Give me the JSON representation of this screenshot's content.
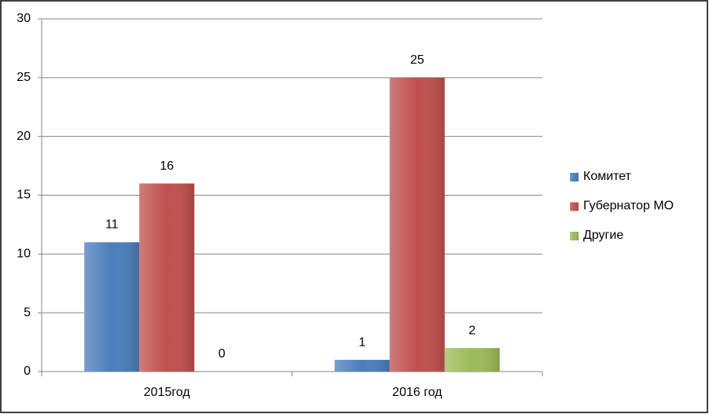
{
  "chart_data": {
    "type": "bar",
    "categories": [
      "2015год",
      "2016 год"
    ],
    "series": [
      {
        "name": "Комитет",
        "color": "#4a7ebb",
        "values": [
          11,
          1
        ]
      },
      {
        "name": "Губернатор МО",
        "color": "#c0504d",
        "values": [
          16,
          25
        ]
      },
      {
        "name": "Другие",
        "color": "#9bbb59",
        "values": [
          0,
          2
        ]
      }
    ],
    "ylim": [
      0,
      30
    ],
    "yticks": [
      0,
      5,
      10,
      15,
      20,
      25,
      30
    ],
    "grid": true,
    "legend": "right"
  }
}
